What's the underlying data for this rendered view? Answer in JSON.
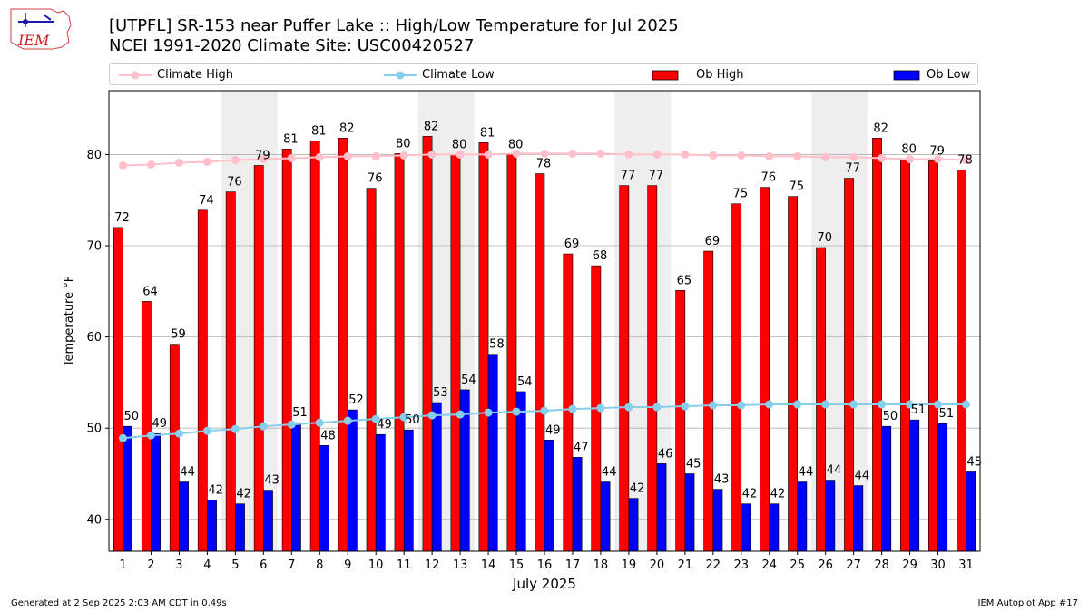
{
  "logo": {
    "text": "IEM"
  },
  "header": {
    "title_line1": "[UTPFL] SR-153 near Puffer Lake  :: High/Low Temperature for Jul 2025",
    "title_line2": "NCEI 1991-2020 Climate Site: USC00420527"
  },
  "legend": {
    "climate_high": "Climate High",
    "climate_low": "Climate Low",
    "ob_high": "Ob High",
    "ob_low": "Ob Low"
  },
  "colors": {
    "ob_high": "#ff0000",
    "ob_low": "#0000ff",
    "climate_high": "#ffc0cb",
    "climate_low": "#87ceeb",
    "weekend_shade": "#eeeeee",
    "grid": "#b0b0b0"
  },
  "footer": {
    "left": "Generated at 2 Sep 2025 2:03 AM CDT in 0.49s",
    "right": "IEM Autoplot App #17"
  },
  "chart_data": {
    "type": "bar",
    "xlabel": "July 2025",
    "ylabel": "Temperature °F",
    "ylim": [
      36.5,
      87
    ],
    "yticks": [
      40,
      50,
      60,
      70,
      80
    ],
    "categories": [
      "1",
      "2",
      "3",
      "4",
      "5",
      "6",
      "7",
      "8",
      "9",
      "10",
      "11",
      "12",
      "13",
      "14",
      "15",
      "16",
      "17",
      "18",
      "19",
      "20",
      "21",
      "22",
      "23",
      "24",
      "25",
      "26",
      "27",
      "28",
      "29",
      "30",
      "31"
    ],
    "shaded_days": [
      [
        5,
        6
      ],
      [
        12,
        13
      ],
      [
        19,
        20
      ],
      [
        26,
        27
      ]
    ],
    "grid": true,
    "legend_position": "top",
    "series": [
      {
        "name": "Ob High",
        "kind": "bar",
        "values": [
          72,
          64,
          59,
          74,
          76,
          79,
          81,
          81,
          82,
          76,
          80,
          82,
          80,
          81,
          80,
          78,
          69,
          68,
          77,
          77,
          65,
          69,
          75,
          76,
          75,
          70,
          77,
          82,
          80,
          79,
          78
        ],
        "plotted": [
          72,
          63.9,
          59.2,
          73.9,
          75.9,
          78.8,
          80.6,
          81.5,
          81.8,
          76.3,
          80.1,
          82,
          80,
          81.3,
          80,
          77.9,
          69.1,
          67.8,
          76.6,
          76.6,
          65.1,
          69.4,
          74.6,
          76.4,
          75.4,
          69.8,
          77.4,
          81.8,
          79.5,
          79.3,
          78.3
        ]
      },
      {
        "name": "Ob Low",
        "kind": "bar",
        "values": [
          50,
          49,
          44,
          42,
          42,
          43,
          51,
          48,
          52,
          49,
          50,
          53,
          54,
          58,
          54,
          49,
          47,
          44,
          42,
          46,
          45,
          43,
          42,
          42,
          44,
          44,
          44,
          50,
          51,
          51,
          45
        ],
        "plotted": [
          50.2,
          49.4,
          44.1,
          42.1,
          41.7,
          43.2,
          50.6,
          48.1,
          52,
          49.3,
          49.8,
          52.8,
          54.2,
          58.1,
          54,
          48.7,
          46.8,
          44.1,
          42.3,
          46.1,
          45,
          43.3,
          41.7,
          41.7,
          44.1,
          44.3,
          43.7,
          50.2,
          50.9,
          50.5,
          45.2
        ]
      },
      {
        "name": "Climate High",
        "kind": "line",
        "values": [
          78.8,
          78.9,
          79.1,
          79.2,
          79.4,
          79.5,
          79.6,
          79.7,
          79.8,
          79.8,
          79.9,
          80,
          80,
          80,
          80.1,
          80.1,
          80.1,
          80.1,
          80,
          80,
          80,
          79.9,
          79.9,
          79.8,
          79.8,
          79.7,
          79.7,
          79.6,
          79.5,
          79.5,
          79.4
        ]
      },
      {
        "name": "Climate Low",
        "kind": "line",
        "values": [
          48.9,
          49.2,
          49.4,
          49.7,
          49.9,
          50.2,
          50.4,
          50.6,
          50.8,
          51,
          51.2,
          51.4,
          51.5,
          51.7,
          51.8,
          51.9,
          52.1,
          52.2,
          52.3,
          52.3,
          52.4,
          52.5,
          52.5,
          52.6,
          52.6,
          52.6,
          52.6,
          52.6,
          52.6,
          52.6,
          52.6
        ]
      }
    ]
  }
}
